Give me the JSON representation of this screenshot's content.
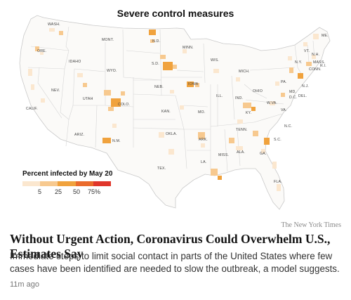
{
  "map": {
    "title": "Severe control measures",
    "state_labels": [
      "WASH.",
      "ORE.",
      "IDAHO",
      "MONT.",
      "WYO.",
      "CALIF.",
      "NEV.",
      "UTAH",
      "ARIZ.",
      "COLO.",
      "N.M.",
      "N.D.",
      "S.D.",
      "NEB.",
      "KAN.",
      "OKLA.",
      "TEX.",
      "MINN.",
      "IOWA",
      "MO.",
      "ARK.",
      "LA.",
      "WIS.",
      "ILL.",
      "MISS.",
      "MICH.",
      "IND.",
      "KY.",
      "TENN.",
      "ALA.",
      "GA.",
      "FLA.",
      "OHIO",
      "W.VA.",
      "VA.",
      "N.C.",
      "S.C.",
      "PA.",
      "N.Y.",
      "VT.",
      "N.H.",
      "ME.",
      "MASS.",
      "R.I.",
      "CONN.",
      "N.J.",
      "MD.",
      "DEL.",
      "D.C."
    ],
    "legend": {
      "title": "Percent infected by May 20",
      "ticks": [
        "5",
        "25",
        "50",
        "75%"
      ],
      "colors": [
        "#fbe7cf",
        "#f7c98f",
        "#f0a23d",
        "#ea6b2c",
        "#e0362b"
      ]
    },
    "credit": "The New York Times"
  },
  "article": {
    "headline": "Without Urgent Action, Coronavirus Could Overwhelm U.S., Estimates Say",
    "summary": "Immediate steps to limit social contact in parts of the United States where few cases have been identified are needed to slow the outbreak, a model suggests.",
    "timestamp": "11m ago"
  }
}
